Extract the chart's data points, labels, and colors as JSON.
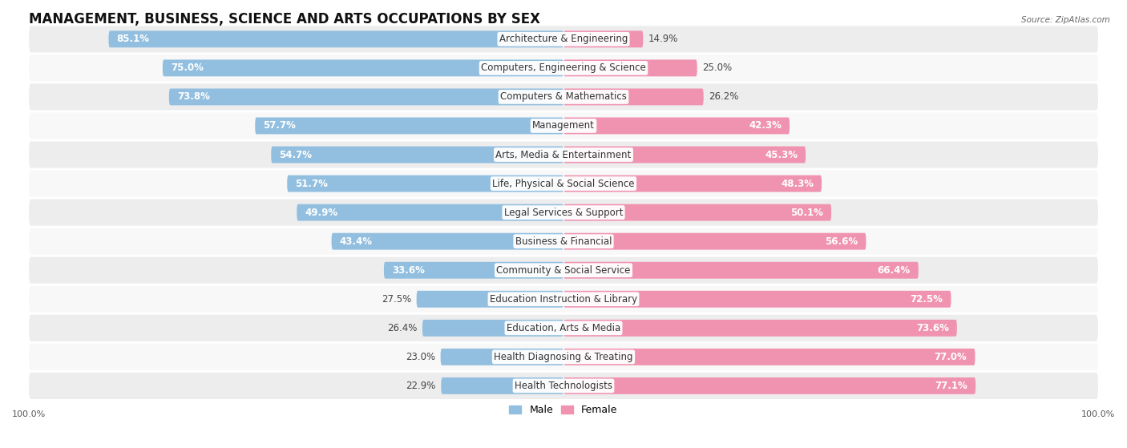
{
  "title": "MANAGEMENT, BUSINESS, SCIENCE AND ARTS OCCUPATIONS BY SEX",
  "source": "Source: ZipAtlas.com",
  "categories": [
    "Architecture & Engineering",
    "Computers, Engineering & Science",
    "Computers & Mathematics",
    "Management",
    "Arts, Media & Entertainment",
    "Life, Physical & Social Science",
    "Legal Services & Support",
    "Business & Financial",
    "Community & Social Service",
    "Education Instruction & Library",
    "Education, Arts & Media",
    "Health Diagnosing & Treating",
    "Health Technologists"
  ],
  "male_pct": [
    85.1,
    75.0,
    73.8,
    57.7,
    54.7,
    51.7,
    49.9,
    43.4,
    33.6,
    27.5,
    26.4,
    23.0,
    22.9
  ],
  "female_pct": [
    14.9,
    25.0,
    26.2,
    42.3,
    45.3,
    48.3,
    50.1,
    56.6,
    66.4,
    72.5,
    73.6,
    77.0,
    77.1
  ],
  "male_color": "#92bfdf",
  "female_color": "#f093b0",
  "bg_row_even": "#ededee",
  "bg_row_odd": "#f8f8f8",
  "legend_male": "Male",
  "legend_female": "Female",
  "bar_height": 0.58,
  "title_fontsize": 12,
  "pct_fontsize": 8.5,
  "cat_fontsize": 8.5,
  "axis_fontsize": 8,
  "xlim_left": -100,
  "xlim_right": 100
}
